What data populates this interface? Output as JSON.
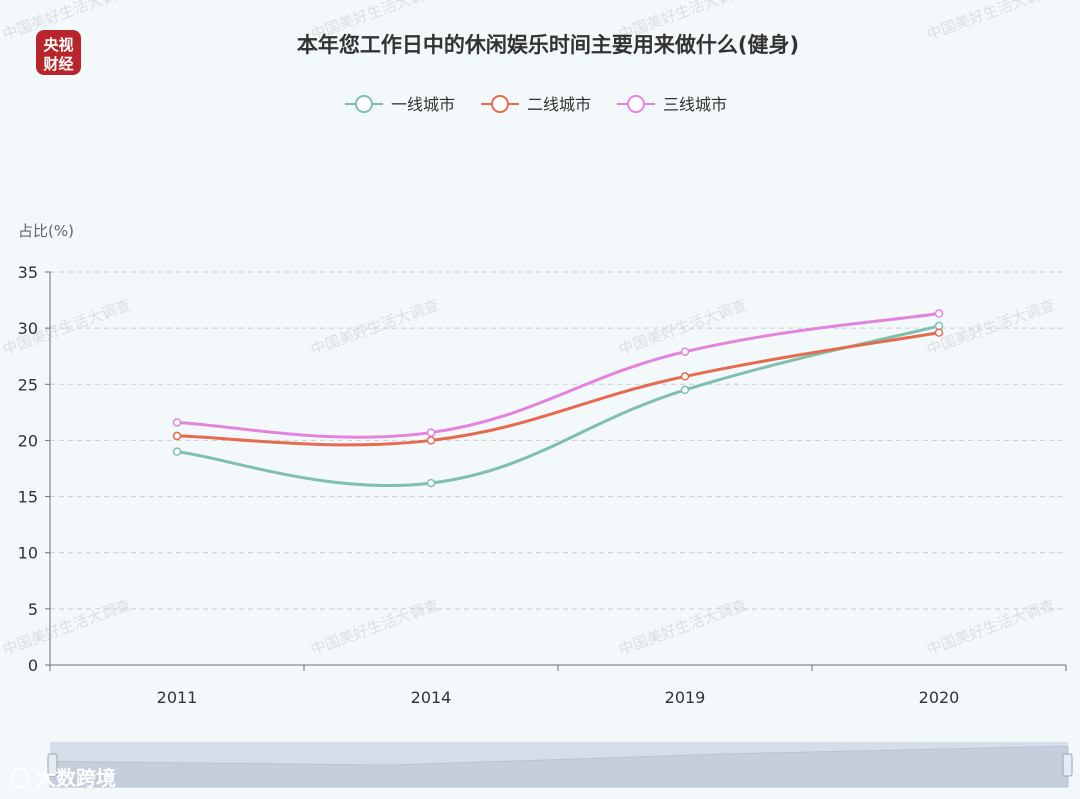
{
  "logo": {
    "line1": "央视",
    "line2": "财经",
    "color": "#b8262b"
  },
  "watermark": "中国美好生活大调查",
  "footer_brand": "大数跨境",
  "chart_data": {
    "type": "line",
    "title": "本年您工作日中的休闲娱乐时间主要用来做什么(健身)",
    "ylabel": "占比(%)",
    "xlabel": "",
    "categories": [
      "2011",
      "2014",
      "2019",
      "2020"
    ],
    "ylim": [
      0,
      35
    ],
    "yticks": [
      0,
      5,
      10,
      15,
      20,
      25,
      30,
      35
    ],
    "grid": true,
    "legend_position": "top-center",
    "series": [
      {
        "name": "一线城市",
        "color": "#7fbfae",
        "values": [
          19.0,
          16.2,
          24.5,
          30.2
        ]
      },
      {
        "name": "二线城市",
        "color": "#e66a4e",
        "values": [
          20.4,
          20.0,
          25.7,
          29.6
        ]
      },
      {
        "name": "三线城市",
        "color": "#e483df",
        "values": [
          21.6,
          20.7,
          27.9,
          31.3
        ]
      }
    ]
  }
}
